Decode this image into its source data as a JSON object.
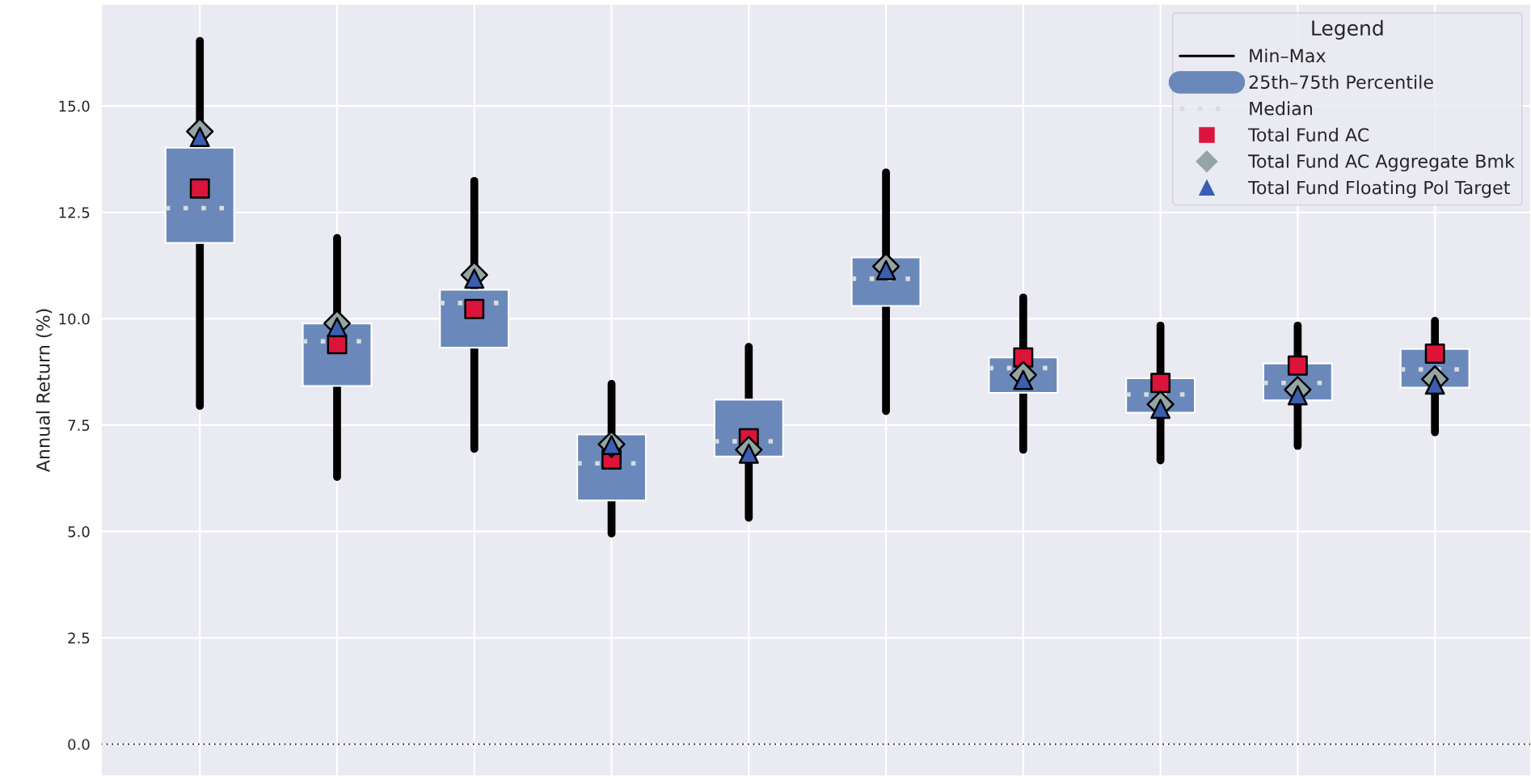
{
  "chart_data": {
    "type": "box",
    "ylabel": "Annual Return (%)",
    "categories": [
      null,
      null,
      null,
      null,
      null,
      null,
      null,
      null,
      null,
      null
    ],
    "boxes": [
      {
        "low": 7.95,
        "q1": 11.78,
        "median": 12.6,
        "q3": 14.02,
        "high": 16.53
      },
      {
        "low": 6.28,
        "q1": 8.42,
        "median": 9.47,
        "q3": 9.89,
        "high": 11.9
      },
      {
        "low": 6.94,
        "q1": 9.32,
        "median": 10.37,
        "q3": 10.68,
        "high": 13.24
      },
      {
        "low": 4.95,
        "q1": 5.73,
        "median": 6.6,
        "q3": 7.28,
        "high": 8.47
      },
      {
        "low": 5.32,
        "q1": 6.76,
        "median": 7.12,
        "q3": 8.1,
        "high": 9.34
      },
      {
        "low": 7.83,
        "q1": 10.3,
        "median": 10.94,
        "q3": 11.44,
        "high": 13.44
      },
      {
        "low": 6.92,
        "q1": 8.26,
        "median": 8.84,
        "q3": 9.09,
        "high": 10.5
      },
      {
        "low": 6.67,
        "q1": 7.79,
        "median": 8.22,
        "q3": 8.6,
        "high": 9.84
      },
      {
        "low": 7.01,
        "q1": 8.08,
        "median": 8.49,
        "q3": 8.95,
        "high": 9.84
      },
      {
        "low": 7.33,
        "q1": 8.38,
        "median": 8.81,
        "q3": 9.29,
        "high": 9.95
      }
    ],
    "color": "#6a89ba",
    "annotations": [
      "Min–Max",
      "25th–75th Percentile",
      "Median"
    ],
    "series": [
      {
        "name": "Total Fund AC",
        "type": "scatter",
        "marker": "square",
        "color": "#dc143c",
        "values": [
          13.06,
          9.4,
          10.23,
          6.69,
          7.19,
          null,
          9.09,
          8.49,
          8.9,
          9.18
        ]
      },
      {
        "name": "Total Fund AC Aggregate Bmk",
        "type": "scatter",
        "marker": "diamond",
        "color": "#95a5a6",
        "values": [
          14.4,
          9.89,
          11.03,
          7.05,
          6.92,
          11.23,
          8.68,
          7.99,
          8.33,
          8.58
        ]
      },
      {
        "name": "Total Fund Floating Pol Target",
        "type": "scatter",
        "marker": "triangle",
        "color": "#3a5fb0",
        "values": [
          14.27,
          9.8,
          10.94,
          7.03,
          6.83,
          11.14,
          8.56,
          7.88,
          8.2,
          8.45
        ]
      }
    ],
    "ylim": [
      -0.75,
      17.4
    ],
    "yticks": [
      {
        "value": 0,
        "label": "0.0"
      },
      {
        "value": 2.5,
        "label": "2.5"
      },
      {
        "value": 5,
        "label": "5.0"
      },
      {
        "value": 7.5,
        "label": "7.5"
      },
      {
        "value": 10,
        "label": "10.0"
      },
      {
        "value": 12.5,
        "label": "12.5"
      },
      {
        "value": 15,
        "label": "15.0"
      }
    ],
    "ref_lines": [
      {
        "axis": "y",
        "value": 0,
        "color": "#000000",
        "line_style": "dotted"
      }
    ],
    "legend_title": "Legend",
    "legend": "top right",
    "grid": true
  }
}
